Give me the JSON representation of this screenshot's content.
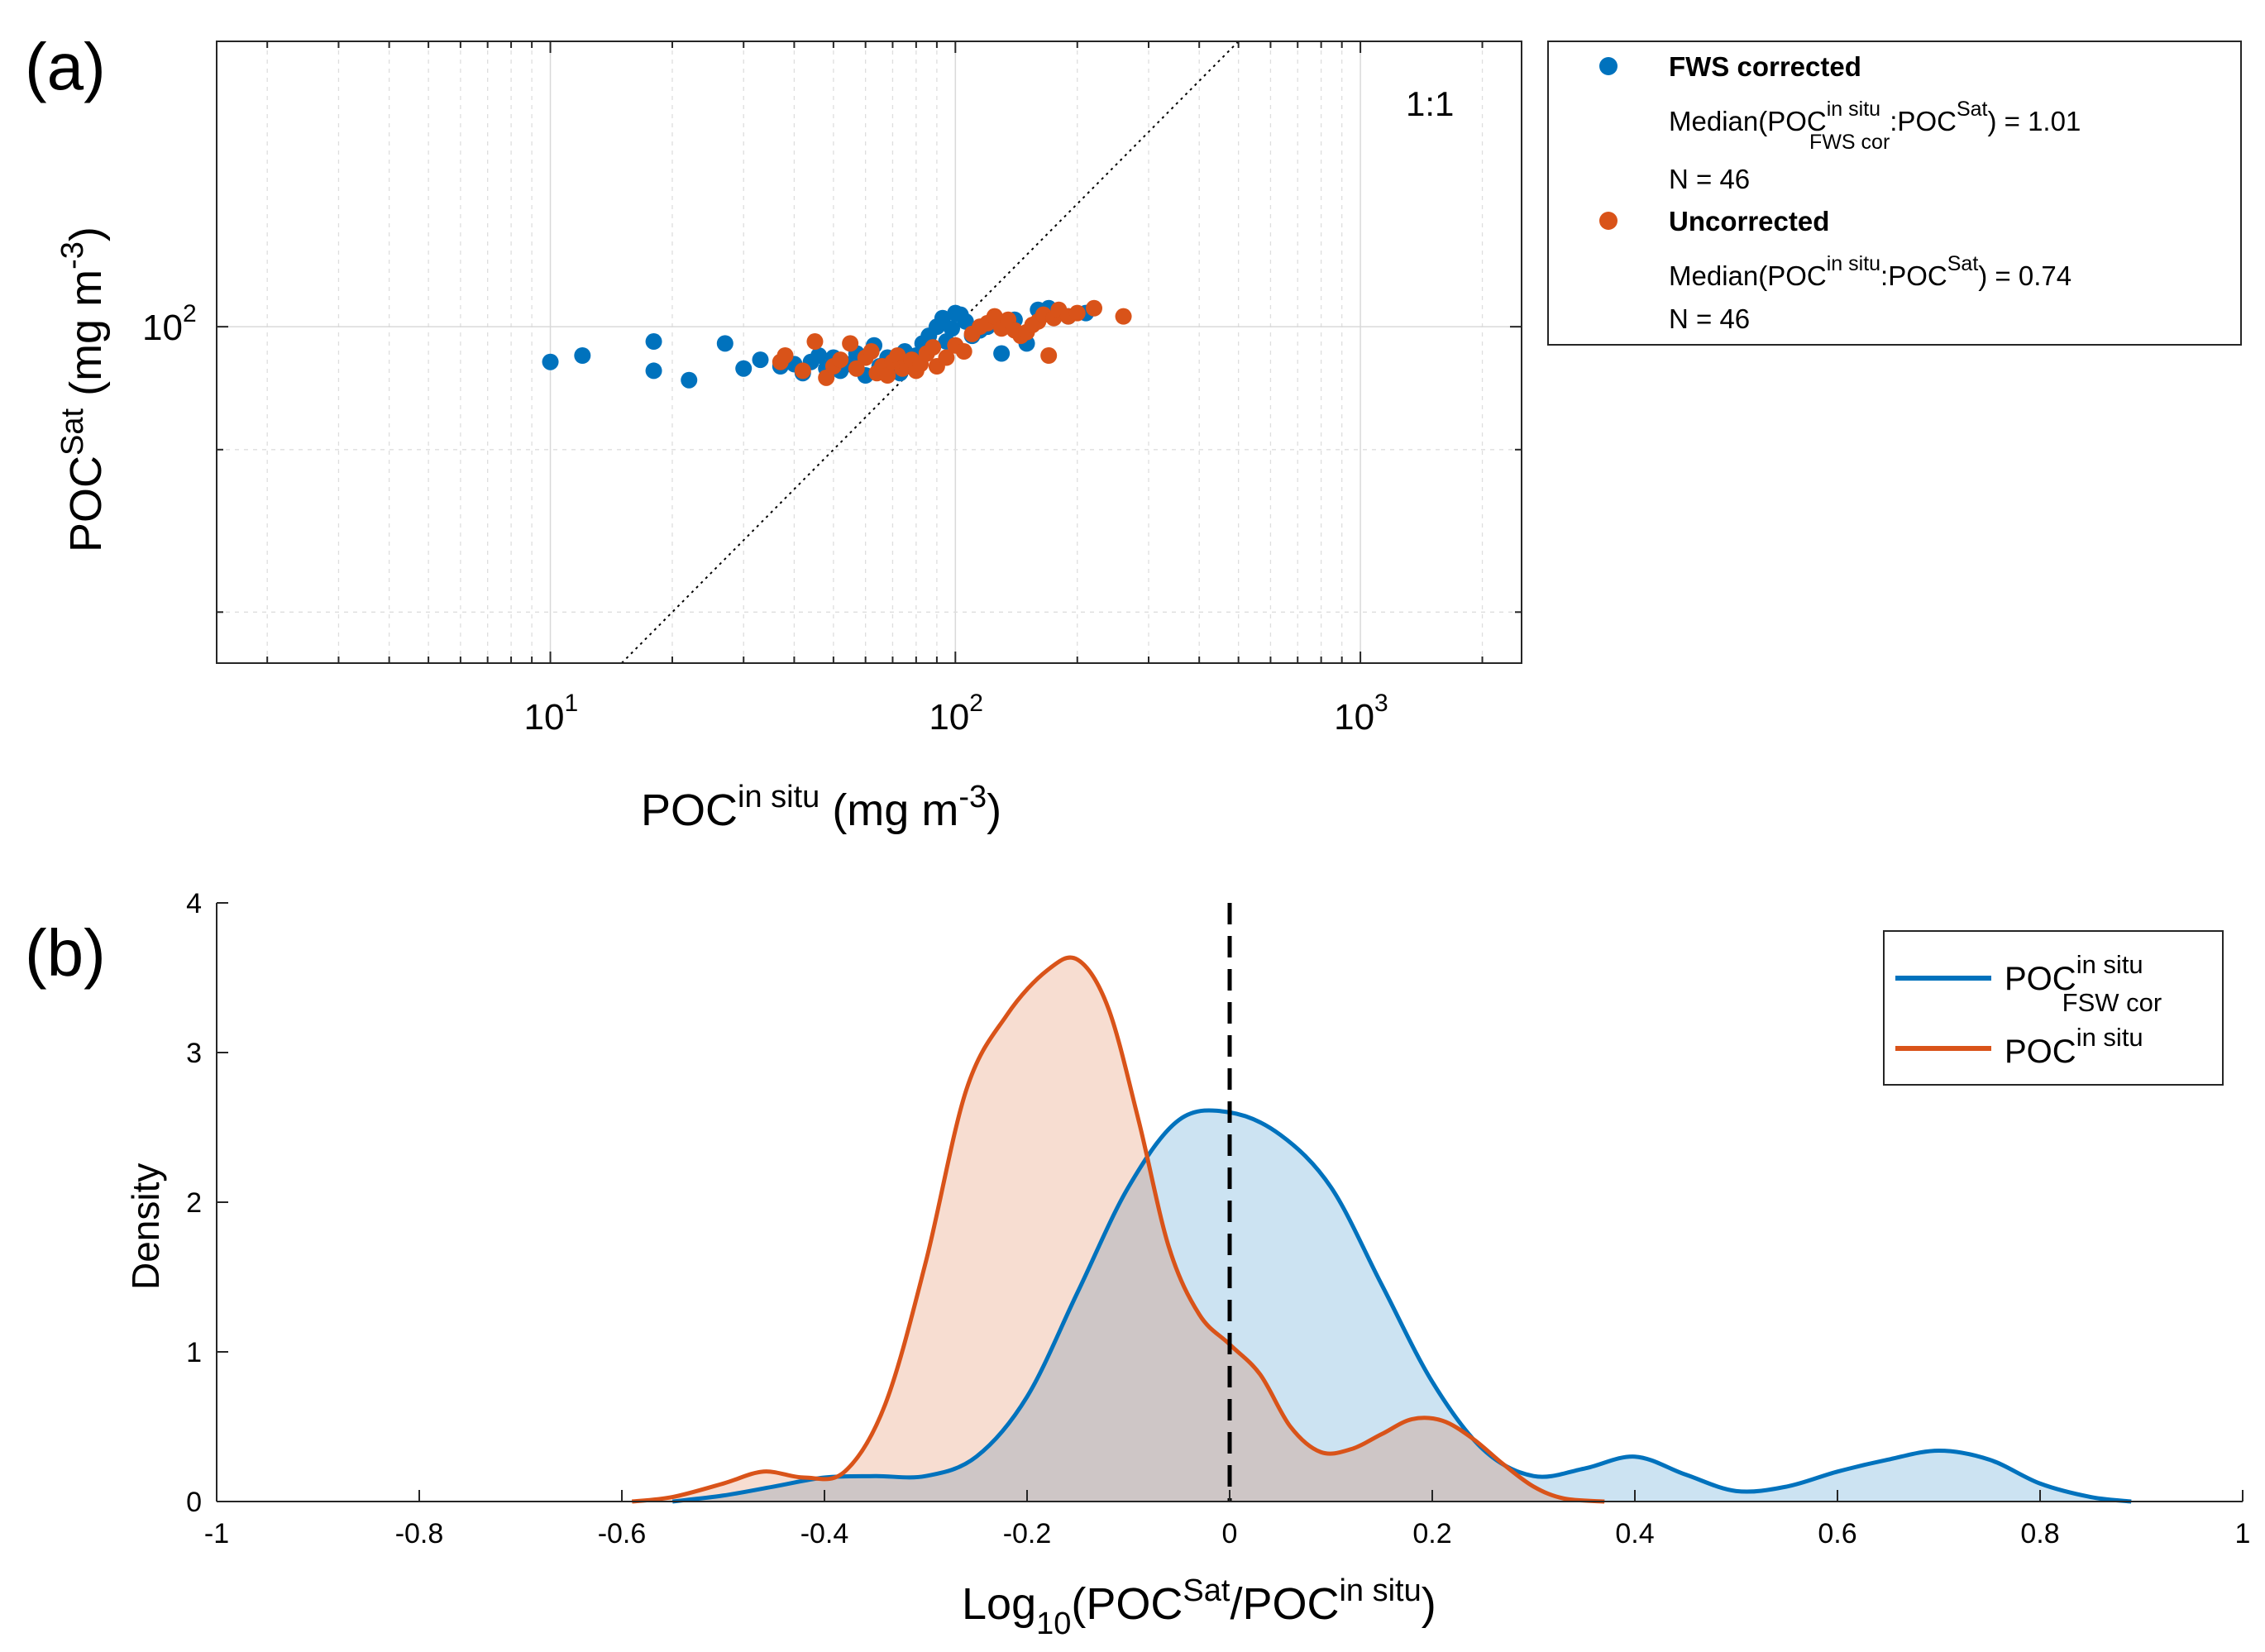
{
  "panels": {
    "a": "(a)",
    "b": "(b)"
  },
  "colors": {
    "fws": "#0072BD",
    "unc": "#D95319"
  },
  "chart_data": [
    {
      "type": "scatter",
      "xscale": "log",
      "yscale": "log",
      "xlim": [
        1.5,
        2500
      ],
      "ylim": [
        15,
        500
      ],
      "x_ticks": [
        {
          "value": 10,
          "base": "10",
          "exp": "1"
        },
        {
          "value": 100,
          "base": "10",
          "exp": "2"
        },
        {
          "value": 1000,
          "base": "10",
          "exp": "3"
        }
      ],
      "y_ticks": [
        {
          "value": 100,
          "base": "10",
          "exp": "2"
        }
      ],
      "xlabel": {
        "main": "POC",
        "sup": "in situ",
        "unit_pre": " (mg m",
        "unit_sup": "-3",
        "unit_post": ")"
      },
      "ylabel": {
        "main": "POC",
        "sup": "Sat",
        "unit_pre": " (mg m",
        "unit_sup": "-3",
        "unit_post": ")"
      },
      "one_to_one_label": "1:1",
      "legend": {
        "position": "outside-right",
        "series": [
          {
            "name": "FWS corrected",
            "median": {
              "prefix": "Median(POC",
              "sup": "in situ",
              "sub": "FWS cor",
              "mid": ":POC",
              "sup2": "Sat",
              "suffix": ") = 1.01"
            },
            "n": "N = 46"
          },
          {
            "name": "Uncorrected",
            "median": {
              "prefix": "Median(POC",
              "sup": "in situ",
              "sub": "",
              "mid": ":POC",
              "sup2": "Sat",
              "suffix": ") = 0.74"
            },
            "n": "N = 46"
          }
        ]
      },
      "series": [
        {
          "name": "FWS corrected",
          "x": [
            10,
            12,
            18,
            18,
            22,
            27,
            30,
            33,
            37,
            40,
            42,
            44,
            46,
            48,
            50,
            52,
            55,
            57,
            60,
            63,
            65,
            68,
            70,
            73,
            75,
            78,
            80,
            83,
            86,
            90,
            93,
            95,
            98,
            100,
            103,
            106,
            110,
            115,
            120,
            130,
            140,
            150,
            160,
            170,
            190,
            210
          ],
          "y": [
            82,
            85,
            92,
            78,
            74,
            91,
            79,
            83,
            80,
            81,
            77,
            82,
            85,
            79,
            84,
            78,
            81,
            86,
            76,
            90,
            80,
            84,
            83,
            77,
            87,
            82,
            85,
            91,
            95,
            100,
            105,
            92,
            99,
            108,
            107,
            103,
            95,
            98,
            100,
            86,
            104,
            91,
            110,
            111,
            106,
            108
          ]
        },
        {
          "name": "Uncorrected",
          "x": [
            37,
            38,
            42,
            45,
            48,
            50,
            52,
            55,
            57,
            60,
            62,
            64,
            66,
            68,
            70,
            72,
            74,
            76,
            78,
            80,
            82,
            85,
            88,
            90,
            95,
            100,
            105,
            110,
            115,
            120,
            125,
            130,
            135,
            140,
            145,
            150,
            155,
            160,
            165,
            170,
            175,
            180,
            190,
            200,
            220,
            260
          ],
          "y": [
            82,
            85,
            78,
            92,
            75,
            80,
            83,
            91,
            79,
            84,
            87,
            77,
            80,
            76,
            82,
            85,
            79,
            80,
            83,
            78,
            81,
            86,
            89,
            80,
            84,
            90,
            87,
            96,
            100,
            102,
            106,
            99,
            104,
            98,
            95,
            97,
            101,
            103,
            107,
            85,
            105,
            110,
            106,
            108,
            111,
            106
          ]
        }
      ]
    },
    {
      "type": "area",
      "xlim": [
        -1,
        1
      ],
      "ylim": [
        0,
        4
      ],
      "x_ticks": [
        "-1",
        "-0.8",
        "-0.6",
        "-0.4",
        "-0.2",
        "0",
        "0.2",
        "0.4",
        "0.6",
        "0.8",
        "1"
      ],
      "y_ticks": [
        "0",
        "1",
        "2",
        "3",
        "4"
      ],
      "ylabel": "Density",
      "xlabel": {
        "pre": "Log",
        "sub": "10",
        "open": "(POC",
        "sup1": "Sat",
        "mid": "/POC",
        "sup2": "in situ",
        "close": ")"
      },
      "reference_line_x": 0,
      "legend": {
        "position": "top-right",
        "entries": [
          {
            "main": "POC",
            "sup": "in situ",
            "sub": "FSW cor"
          },
          {
            "main": "POC",
            "sup": "in situ",
            "sub": ""
          }
        ]
      },
      "series": [
        {
          "name": "FSW cor",
          "x": [
            -0.55,
            -0.5,
            -0.45,
            -0.4,
            -0.35,
            -0.3,
            -0.25,
            -0.2,
            -0.15,
            -0.1,
            -0.05,
            0,
            0.05,
            0.1,
            0.15,
            0.2,
            0.25,
            0.3,
            0.35,
            0.4,
            0.45,
            0.5,
            0.55,
            0.6,
            0.65,
            0.7,
            0.75,
            0.8,
            0.85,
            0.89
          ],
          "y": [
            0.0,
            0.04,
            0.1,
            0.16,
            0.17,
            0.17,
            0.3,
            0.7,
            1.4,
            2.1,
            2.55,
            2.6,
            2.45,
            2.1,
            1.45,
            0.8,
            0.35,
            0.17,
            0.22,
            0.3,
            0.18,
            0.07,
            0.1,
            0.2,
            0.28,
            0.34,
            0.28,
            0.12,
            0.03,
            0.0
          ]
        },
        {
          "name": "POC in situ",
          "x": [
            -0.59,
            -0.55,
            -0.5,
            -0.46,
            -0.42,
            -0.38,
            -0.34,
            -0.3,
            -0.26,
            -0.22,
            -0.18,
            -0.15,
            -0.12,
            -0.09,
            -0.06,
            -0.03,
            0,
            0.03,
            0.06,
            0.09,
            0.12,
            0.15,
            0.18,
            0.21,
            0.24,
            0.27,
            0.3,
            0.33,
            0.37
          ],
          "y": [
            0.0,
            0.03,
            0.12,
            0.2,
            0.16,
            0.2,
            0.65,
            1.6,
            2.75,
            3.25,
            3.55,
            3.62,
            3.3,
            2.55,
            1.7,
            1.25,
            1.05,
            0.85,
            0.5,
            0.33,
            0.35,
            0.45,
            0.55,
            0.54,
            0.42,
            0.25,
            0.1,
            0.02,
            0.0
          ]
        }
      ]
    }
  ]
}
